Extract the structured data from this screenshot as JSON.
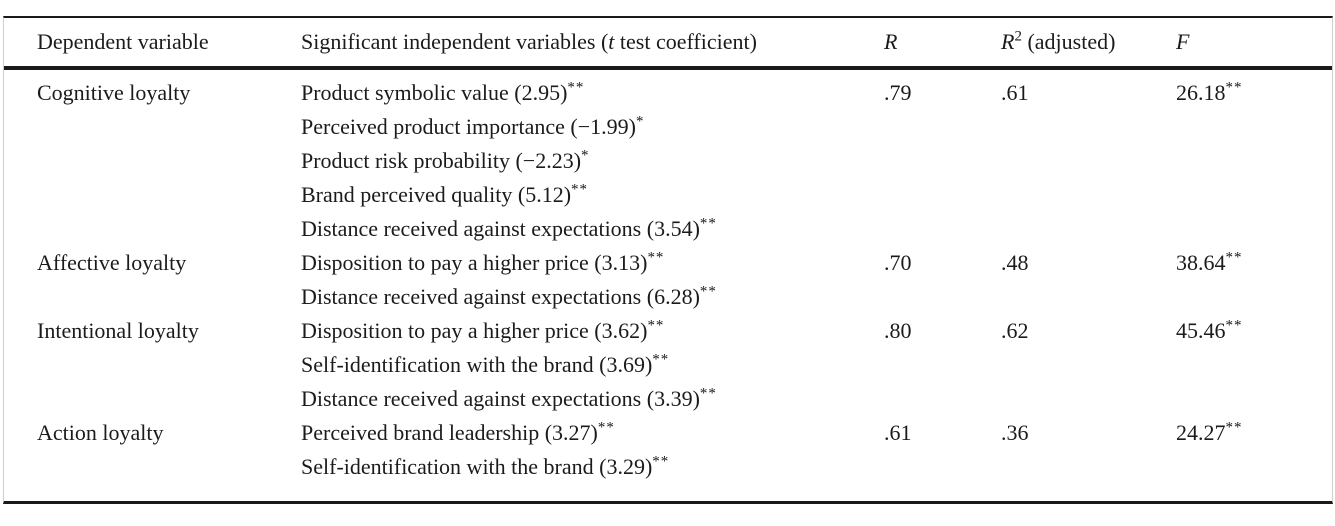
{
  "colors": {
    "background": "#ffffff",
    "text": "#1b1b1b",
    "rule": "#1a1a1a",
    "side_border": "#cfcfcf"
  },
  "header": {
    "col_dependent": "Dependent variable",
    "col_predictors_prefix": "Significant independent variables (",
    "col_predictors_italic": "t",
    "col_predictors_suffix": " test coefficient)",
    "col_r": "R",
    "col_r2_base": "R",
    "col_r2_sup": "2",
    "col_r2_suffix": " (adjusted)",
    "col_f": "F"
  },
  "rows": [
    {
      "dependent": "Cognitive loyalty",
      "predictors": [
        {
          "text": "Product symbolic value (2.95)",
          "sig": "**"
        },
        {
          "text": "Perceived product importance (−1.99)",
          "sig": "*"
        },
        {
          "text": "Product risk probability (−2.23)",
          "sig": "*"
        },
        {
          "text": "Brand perceived quality (5.12)",
          "sig": "**"
        },
        {
          "text": "Distance received against expectations (3.54)",
          "sig": "**"
        }
      ],
      "r": ".79",
      "r2": ".61",
      "f": {
        "value": "26.18",
        "sig": "**"
      }
    },
    {
      "dependent": "Affective loyalty",
      "predictors": [
        {
          "text": "Disposition to pay a higher price (3.13)",
          "sig": "**"
        },
        {
          "text": "Distance received against expectations (6.28)",
          "sig": "**"
        }
      ],
      "r": ".70",
      "r2": ".48",
      "f": {
        "value": "38.64",
        "sig": "**"
      }
    },
    {
      "dependent": "Intentional loyalty",
      "predictors": [
        {
          "text": "Disposition to pay a higher price (3.62)",
          "sig": "**"
        },
        {
          "text": "Self-identification with the brand (3.69)",
          "sig": "**"
        },
        {
          "text": "Distance received against expectations (3.39)",
          "sig": "**"
        }
      ],
      "r": ".80",
      "r2": ".62",
      "f": {
        "value": "45.46",
        "sig": "**"
      }
    },
    {
      "dependent": "Action loyalty",
      "predictors": [
        {
          "text": "Perceived brand leadership (3.27)",
          "sig": "**"
        },
        {
          "text": "Self-identification with the brand (3.29)",
          "sig": "**"
        }
      ],
      "r": ".61",
      "r2": ".36",
      "f": {
        "value": "24.27",
        "sig": "**"
      }
    }
  ]
}
